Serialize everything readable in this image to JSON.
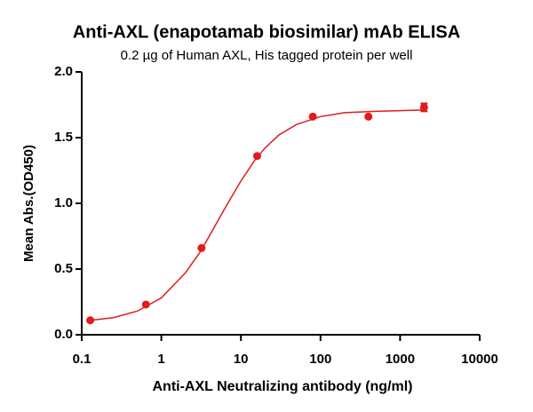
{
  "chart_data": {
    "type": "scatter",
    "title": "Anti-AXL (enapotamab biosimilar) mAb ELISA",
    "subtitle": "0.2 µg of Human AXL, His tagged protein per well",
    "x_label": "Anti-AXL Neutralizing antibody (ng/ml)",
    "y_label": "Mean Abs.(OD450)",
    "x": [
      0.128,
      0.64,
      3.2,
      16,
      80,
      400,
      2000
    ],
    "values": [
      0.11,
      0.23,
      0.66,
      1.36,
      1.66,
      1.66,
      1.73
    ],
    "errors": [
      null,
      null,
      null,
      null,
      null,
      null,
      0.03
    ],
    "color": "#e31a1c",
    "fit": {
      "x": [
        0.128,
        0.25,
        0.5,
        1,
        2,
        3,
        4,
        6,
        8,
        10,
        15,
        20,
        30,
        50,
        100,
        200,
        500,
        2000
      ],
      "values": [
        0.11,
        0.13,
        0.18,
        0.28,
        0.47,
        0.62,
        0.75,
        0.94,
        1.07,
        1.17,
        1.33,
        1.42,
        1.52,
        1.6,
        1.66,
        1.69,
        1.7,
        1.71
      ]
    },
    "x_log": true,
    "xlim": [
      0.1,
      10000
    ],
    "xticks": [
      0.1,
      1,
      10,
      100,
      1000,
      10000
    ],
    "ylim": [
      0,
      2
    ],
    "yticks": [
      {
        "value": 0,
        "label": "0.0"
      },
      {
        "value": 0.5,
        "label": "0.5"
      },
      {
        "value": 1,
        "label": "1.0"
      },
      {
        "value": 1.5,
        "label": "1.5"
      },
      {
        "value": 2,
        "label": "2.0"
      }
    ]
  }
}
